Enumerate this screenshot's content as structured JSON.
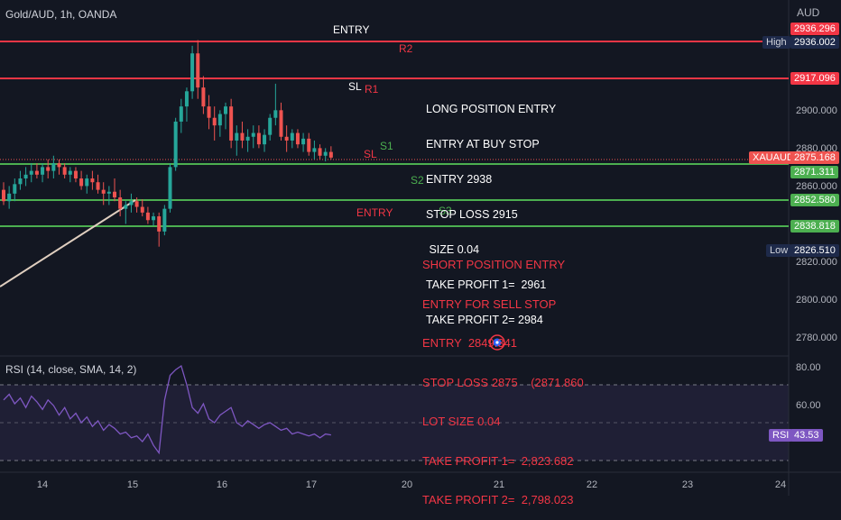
{
  "header": {
    "symbol_title": "Gold/AUD, 1h, OANDA",
    "currency": "AUD"
  },
  "price_axis": {
    "ticks": [
      "2900.000",
      "2880.000",
      "2860.000",
      "2820.000",
      "2800.000",
      "2780.000"
    ],
    "top_tag": "2936.296",
    "high": {
      "label": "High",
      "value": "2936.002"
    },
    "low": {
      "label": "Low",
      "value": "2826.510"
    },
    "r1_tag": "2917.096",
    "current": {
      "symbol": "XAUAUD",
      "value": "2875.168"
    },
    "s1_tag": "2871.311",
    "s2_tag": "2852.580",
    "s3_tag": "2838.818"
  },
  "levels": {
    "r2": {
      "label": "R2",
      "price": 2936.3,
      "color": "#f23645"
    },
    "r1": {
      "label": "R1",
      "price": 2917.1,
      "color": "#f23645"
    },
    "s1": {
      "label": "S1",
      "price": 2871.3,
      "color": "#4caf50"
    },
    "s2": {
      "label": "S2",
      "price": 2852.6,
      "color": "#4caf50"
    },
    "s3": {
      "label": "S3",
      "price": 2838.8,
      "color": "#4caf50"
    }
  },
  "annotations": {
    "entry_top": "ENTRY",
    "sl_white": "SL",
    "sl_red": "SL",
    "entry_red": "ENTRY",
    "long_note": [
      "LONG POSITION ENTRY",
      "ENTRY AT BUY STOP",
      "ENTRY 2938",
      "STOP LOSS 2915",
      " SIZE 0.04",
      "TAKE PROFIT 1=  2961",
      "TAKE PROFIT 2= 2984"
    ],
    "short_note": [
      "SHORT POSITION ENTRY",
      "ENTRY FOR SELL STOP",
      "ENTRY  2849.341",
      "STOP LOSS 2875    (2871.860",
      "LOT SIZE 0.04",
      "TAKE PROFIT 1=  2,823.682",
      "TAKE PROFIT 2=  2,798.023"
    ]
  },
  "rsi": {
    "title": "RSI (14, close, SMA, 14, 2)",
    "ticks": [
      "80.00",
      "60.00"
    ],
    "tag_label": "RSI",
    "tag_value": "43.53"
  },
  "time_axis": {
    "ticks": [
      "14",
      "15",
      "16",
      "17",
      "20",
      "21",
      "22",
      "23",
      "24"
    ]
  },
  "colors": {
    "background": "#131722",
    "up": "#26a69a",
    "down": "#ef5350",
    "rsi_line": "#7e57c2"
  },
  "chart_data": {
    "type": "candlestick",
    "title": "Gold/AUD, 1h, OANDA",
    "ylim": [
      2770,
      2945
    ],
    "rsi_ylim": [
      30,
      90
    ],
    "candles": [
      [
        2858,
        2862,
        2850,
        2852
      ],
      [
        2852,
        2860,
        2848,
        2856
      ],
      [
        2856,
        2864,
        2852,
        2861
      ],
      [
        2861,
        2868,
        2858,
        2864
      ],
      [
        2864,
        2870,
        2860,
        2866
      ],
      [
        2866,
        2872,
        2862,
        2868
      ],
      [
        2868,
        2872,
        2864,
        2866
      ],
      [
        2866,
        2872,
        2862,
        2870
      ],
      [
        2870,
        2874,
        2864,
        2868
      ],
      [
        2868,
        2876,
        2864,
        2872
      ],
      [
        2872,
        2874,
        2866,
        2870
      ],
      [
        2870,
        2872,
        2864,
        2866
      ],
      [
        2866,
        2870,
        2862,
        2868
      ],
      [
        2868,
        2870,
        2862,
        2864
      ],
      [
        2864,
        2868,
        2858,
        2860
      ],
      [
        2860,
        2866,
        2856,
        2864
      ],
      [
        2864,
        2868,
        2858,
        2862
      ],
      [
        2862,
        2866,
        2856,
        2858
      ],
      [
        2858,
        2862,
        2850,
        2856
      ],
      [
        2856,
        2860,
        2850,
        2857
      ],
      [
        2857,
        2864,
        2852,
        2854
      ],
      [
        2854,
        2858,
        2844,
        2848
      ],
      [
        2848,
        2852,
        2840,
        2850
      ],
      [
        2850,
        2856,
        2846,
        2852
      ],
      [
        2852,
        2854,
        2846,
        2849
      ],
      [
        2849,
        2853,
        2844,
        2846
      ],
      [
        2846,
        2849,
        2840,
        2842
      ],
      [
        2842,
        2846,
        2839,
        2844
      ],
      [
        2844,
        2846,
        2828,
        2836
      ],
      [
        2836,
        2850,
        2834,
        2848
      ],
      [
        2848,
        2872,
        2846,
        2870
      ],
      [
        2870,
        2896,
        2868,
        2894
      ],
      [
        2894,
        2906,
        2888,
        2902
      ],
      [
        2902,
        2912,
        2894,
        2910
      ],
      [
        2910,
        2934,
        2906,
        2930
      ],
      [
        2930,
        2937,
        2906,
        2912
      ],
      [
        2912,
        2918,
        2898,
        2902
      ],
      [
        2902,
        2908,
        2890,
        2896
      ],
      [
        2896,
        2902,
        2884,
        2892
      ],
      [
        2892,
        2900,
        2886,
        2898
      ],
      [
        2898,
        2904,
        2890,
        2902
      ],
      [
        2902,
        2906,
        2880,
        2884
      ],
      [
        2884,
        2892,
        2876,
        2888
      ],
      [
        2888,
        2894,
        2880,
        2884
      ],
      [
        2884,
        2890,
        2878,
        2886
      ],
      [
        2886,
        2892,
        2880,
        2888
      ],
      [
        2888,
        2892,
        2880,
        2882
      ],
      [
        2882,
        2890,
        2878,
        2887
      ],
      [
        2887,
        2898,
        2884,
        2896
      ],
      [
        2896,
        2914,
        2892,
        2900
      ],
      [
        2900,
        2904,
        2884,
        2886
      ],
      [
        2886,
        2892,
        2878,
        2884
      ],
      [
        2884,
        2890,
        2880,
        2888
      ],
      [
        2888,
        2890,
        2880,
        2882
      ],
      [
        2882,
        2888,
        2878,
        2885
      ],
      [
        2885,
        2888,
        2876,
        2878
      ],
      [
        2878,
        2884,
        2874,
        2880
      ],
      [
        2880,
        2882,
        2874,
        2876
      ],
      [
        2876,
        2880,
        2873,
        2878
      ],
      [
        2878,
        2881,
        2874,
        2875
      ]
    ],
    "rsi": [
      62,
      65,
      60,
      63,
      58,
      64,
      61,
      57,
      62,
      59,
      54,
      58,
      52,
      55,
      50,
      53,
      48,
      51,
      46,
      49,
      47,
      44,
      45,
      42,
      43,
      40,
      44,
      38,
      34,
      62,
      75,
      78,
      80,
      70,
      58,
      55,
      60,
      52,
      50,
      54,
      56,
      58,
      50,
      48,
      51,
      49,
      47,
      49,
      50,
      48,
      46,
      47,
      44,
      45,
      44,
      43,
      44,
      42,
      44,
      43.5
    ]
  }
}
